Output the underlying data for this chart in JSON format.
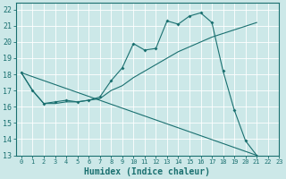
{
  "xlabel": "Humidex (Indice chaleur)",
  "xlim": [
    -0.5,
    23
  ],
  "ylim": [
    13,
    22.4
  ],
  "xticks": [
    0,
    1,
    2,
    3,
    4,
    5,
    6,
    7,
    8,
    9,
    10,
    11,
    12,
    13,
    14,
    15,
    16,
    17,
    18,
    19,
    20,
    21,
    22,
    23
  ],
  "yticks": [
    13,
    14,
    15,
    16,
    17,
    18,
    19,
    20,
    21,
    22
  ],
  "bg_color": "#cce8e8",
  "line_color": "#1a7070",
  "grid_color": "#ffffff",
  "line1_x": [
    0,
    1,
    2,
    3,
    4,
    5,
    6,
    7,
    8,
    9,
    10,
    11,
    12,
    13,
    14,
    15,
    16,
    17,
    18,
    19,
    20,
    21
  ],
  "line1_y": [
    18.1,
    17.0,
    16.2,
    16.3,
    16.4,
    16.3,
    16.4,
    16.6,
    17.6,
    18.4,
    19.9,
    19.5,
    19.6,
    21.3,
    21.1,
    21.6,
    21.8,
    21.2,
    18.2,
    15.8,
    13.9,
    13.0
  ],
  "line2_x": [
    0,
    21
  ],
  "line2_y": [
    18.1,
    13.0
  ],
  "line3_x": [
    0,
    1,
    2,
    3,
    4,
    5,
    6,
    7,
    8,
    9,
    10,
    11,
    12,
    13,
    14,
    15,
    16,
    17,
    21
  ],
  "line3_y": [
    18.1,
    17.0,
    16.2,
    16.2,
    16.3,
    16.3,
    16.4,
    16.5,
    17.0,
    17.3,
    17.8,
    18.2,
    18.6,
    19.0,
    19.4,
    19.7,
    20.0,
    20.3,
    21.2
  ],
  "xtick_fontsize": 5.0,
  "ytick_fontsize": 6.0,
  "xlabel_fontsize": 7.0
}
